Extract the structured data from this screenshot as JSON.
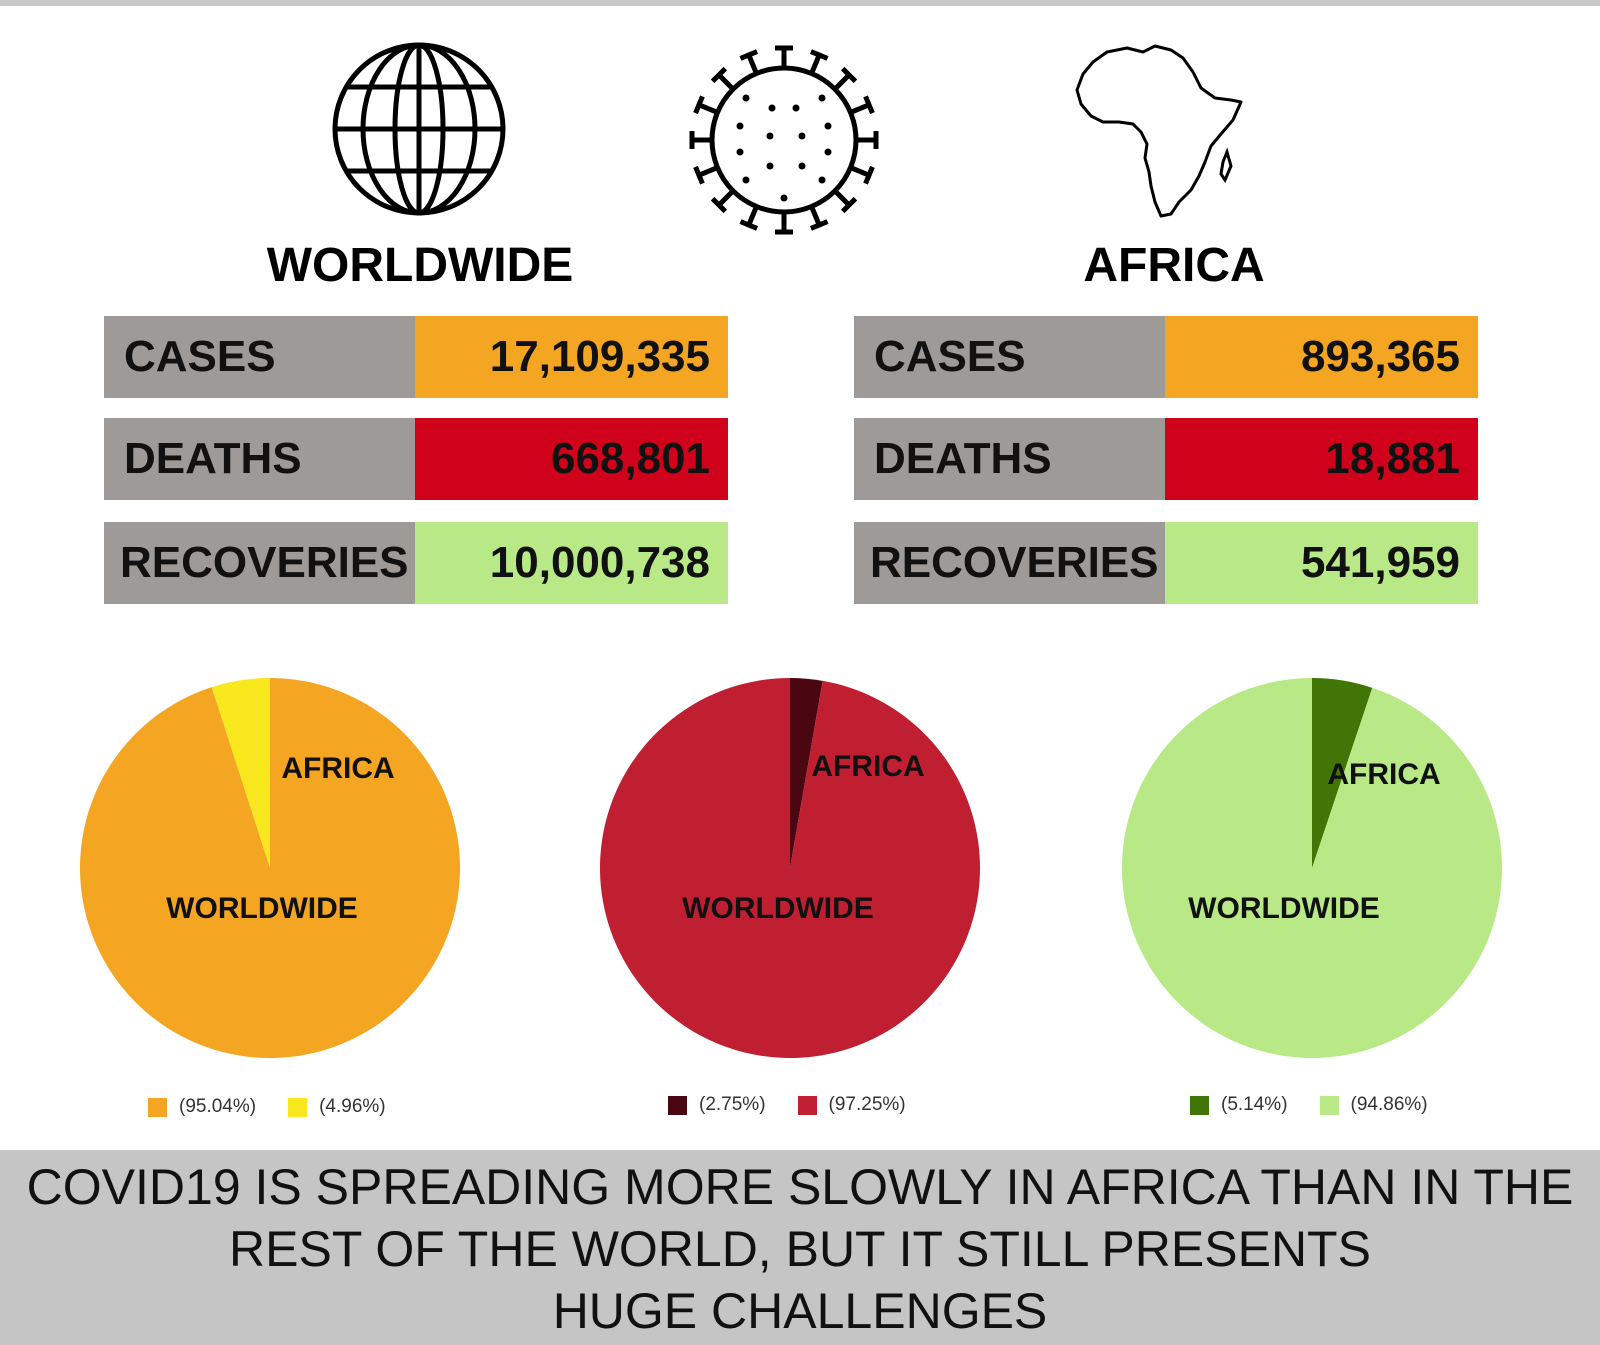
{
  "worldwide": {
    "title": "WORLDWIDE",
    "stats": [
      {
        "label": "CASES",
        "value": "17,109,335",
        "color": "#f4a623"
      },
      {
        "label": "DEATHS",
        "value": "668,801",
        "color": "#d0021b"
      },
      {
        "label": "RECOVERIES",
        "value": "10,000,738",
        "color": "#b8e986"
      }
    ]
  },
  "africa": {
    "title": "AFRICA",
    "stats": [
      {
        "label": "CASES",
        "value": "893,365",
        "color": "#f4a623"
      },
      {
        "label": "DEATHS",
        "value": "18,881",
        "color": "#d0021b"
      },
      {
        "label": "RECOVERIES",
        "value": "541,959",
        "color": "#b8e986"
      }
    ]
  },
  "icons": [
    "globe-icon",
    "virus-icon",
    "africa-map-icon"
  ],
  "chart_data": [
    {
      "type": "pie",
      "slices": [
        {
          "label": "WORLDWIDE",
          "value": 95.04,
          "legend": "(95.04%)",
          "color": "#f4a623"
        },
        {
          "label": "AFRICA",
          "value": 4.96,
          "legend": "(4.96%)",
          "color": "#f8e71c"
        }
      ]
    },
    {
      "type": "pie",
      "slices": [
        {
          "label": "AFRICA",
          "value": 2.75,
          "legend": "(2.75%)",
          "color": "#4a0712"
        },
        {
          "label": "WORLDWIDE",
          "value": 97.25,
          "legend": "(97.25%)",
          "color": "#c01f32"
        }
      ]
    },
    {
      "type": "pie",
      "slices": [
        {
          "label": "AFRICA",
          "value": 5.14,
          "legend": "(5.14%)",
          "color": "#417505"
        },
        {
          "label": "WORLDWIDE",
          "value": 94.86,
          "legend": "(94.86%)",
          "color": "#b8e986"
        }
      ]
    }
  ],
  "footer": {
    "line1": "COVID19 IS SPREADING MORE SLOWLY IN AFRICA THAN IN THE",
    "line2": "REST OF THE WORLD, BUT IT STILL PRESENTS",
    "line3": "HUGE CHALLENGES"
  }
}
